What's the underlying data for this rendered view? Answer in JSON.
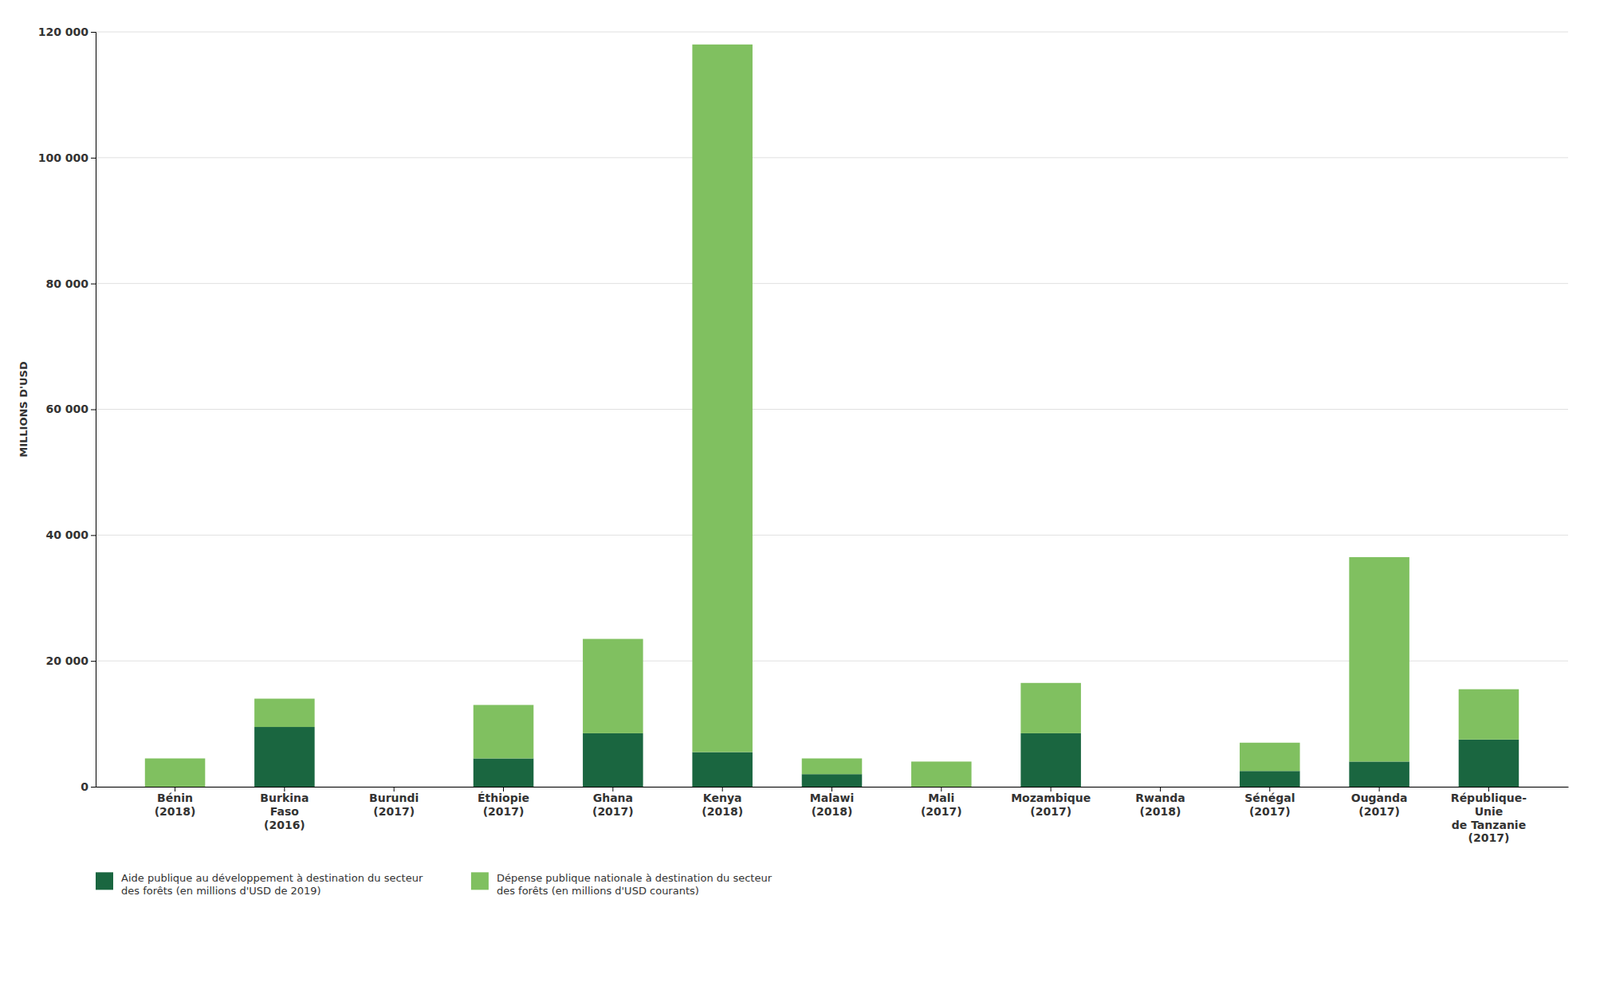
{
  "chart_data": {
    "type": "bar",
    "stacked": true,
    "categories": [
      "Bénin\n(2018)",
      "Burkina\nFaso\n(2016)",
      "Burundi\n(2017)",
      "Éthiopie\n(2017)",
      "Ghana\n(2017)",
      "Kenya\n(2018)",
      "Malawi\n(2018)",
      "Mali\n(2017)",
      "Mozambique\n(2017)",
      "Rwanda\n(2018)",
      "Sénégal\n(2017)",
      "Ouganda\n(2017)",
      "République-\nUnie\nde Tanzanie\n(2017)"
    ],
    "series": [
      {
        "name": "Aide publique au développement à destination du secteur\ndes forêts (en millions d'USD de 2019)",
        "color": "#1a6640",
        "values": [
          0,
          9500,
          0,
          4500,
          8500,
          5500,
          2000,
          0,
          8500,
          0,
          2500,
          4000,
          7500
        ]
      },
      {
        "name": "Dépense publique nationale à destination du secteur\ndes forêts (en millions d'USD courants)",
        "color": "#80c060",
        "values": [
          4500,
          4500,
          0,
          8500,
          15000,
          112500,
          2500,
          4000,
          8000,
          0,
          4500,
          32500,
          8000
        ]
      }
    ],
    "ylabel": "MILLIONS D'USD",
    "ylim": [
      0,
      120000
    ],
    "yticks": [
      0,
      {
        "value": 20000,
        "label": "20 000"
      },
      {
        "value": 40000,
        "label": "40 000"
      },
      {
        "value": 60000,
        "label": "60 000"
      },
      {
        "value": 80000,
        "label": "80 000"
      },
      {
        "value": 100000,
        "label": "100 000"
      },
      {
        "value": 120000,
        "label": "120 000"
      }
    ],
    "grid": true,
    "legend": "bottom"
  }
}
